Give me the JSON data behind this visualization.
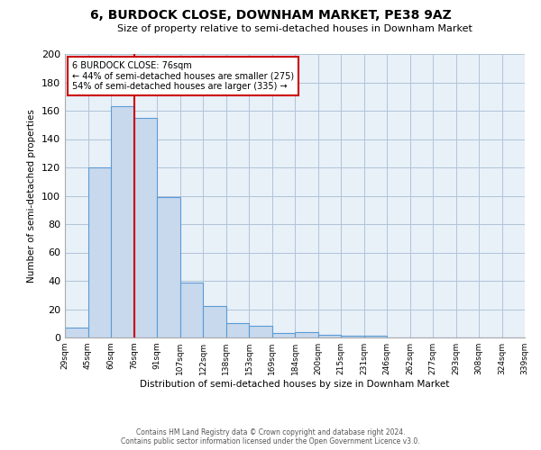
{
  "title": "6, BURDOCK CLOSE, DOWNHAM MARKET, PE38 9AZ",
  "subtitle": "Size of property relative to semi-detached houses in Downham Market",
  "xlabel": "Distribution of semi-detached houses by size in Downham Market",
  "ylabel": "Number of semi-detached properties",
  "footer_line1": "Contains HM Land Registry data © Crown copyright and database right 2024.",
  "footer_line2": "Contains public sector information licensed under the Open Government Licence v3.0.",
  "bin_labels": [
    "29sqm",
    "45sqm",
    "60sqm",
    "76sqm",
    "91sqm",
    "107sqm",
    "122sqm",
    "138sqm",
    "153sqm",
    "169sqm",
    "184sqm",
    "200sqm",
    "215sqm",
    "231sqm",
    "246sqm",
    "262sqm",
    "277sqm",
    "293sqm",
    "308sqm",
    "324sqm",
    "339sqm"
  ],
  "bar_values": [
    7,
    120,
    163,
    155,
    99,
    39,
    22,
    10,
    8,
    3,
    4,
    2,
    1,
    1,
    0,
    0,
    0,
    0,
    0,
    0
  ],
  "bar_color": "#c8d9ed",
  "bar_edge_color": "#5b9bd5",
  "property_line_x": 3,
  "property_line_color": "#cc0000",
  "ylim": [
    0,
    200
  ],
  "yticks": [
    0,
    20,
    40,
    60,
    80,
    100,
    120,
    140,
    160,
    180,
    200
  ],
  "annotation_title": "6 BURDOCK CLOSE: 76sqm",
  "annotation_line1": "← 44% of semi-detached houses are smaller (275)",
  "annotation_line2": "54% of semi-detached houses are larger (335) →",
  "annotation_box_color": "#ffffff",
  "annotation_box_edge_color": "#cc0000",
  "background_color": "#e8f0f8"
}
